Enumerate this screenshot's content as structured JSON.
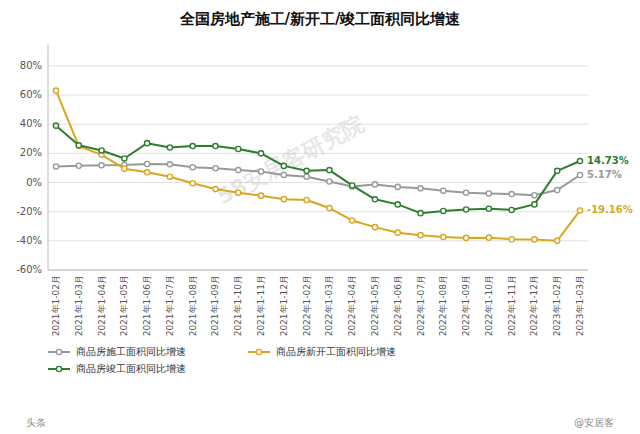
{
  "chart_data": {
    "type": "line",
    "title": "全国房地产施工/新开工/竣工面积同比增速",
    "categories": [
      "2021年1-02月",
      "2021年1-03月",
      "2021年1-04月",
      "2021年1-05月",
      "2021年1-06月",
      "2021年1-07月",
      "2021年1-08月",
      "2021年1-09月",
      "2021年1-10月",
      "2021年1-11月",
      "2021年1-12月",
      "2022年1-02月",
      "2022年1-03月",
      "2022年1-04月",
      "2022年1-05月",
      "2022年1-06月",
      "2022年1-07月",
      "2022年1-08月",
      "2022年1-09月",
      "2022年1-10月",
      "2022年1-11月",
      "2022年1-12月",
      "2023年1-02月",
      "2023年1-03月"
    ],
    "series": [
      {
        "name": "商品房施工面积同比增速",
        "color": "#999999",
        "values": [
          11.0,
          11.5,
          11.8,
          12.0,
          12.7,
          12.5,
          10.5,
          9.8,
          8.5,
          7.6,
          5.2,
          4.0,
          0.7,
          -2.7,
          -1.3,
          -3.0,
          -4.0,
          -5.6,
          -7.0,
          -7.5,
          -7.9,
          -8.7,
          -5.2,
          5.17
        ]
      },
      {
        "name": "商品房新开工面积同比增速",
        "color": "#DAA520",
        "values": [
          63.0,
          25.0,
          19.0,
          9.5,
          7.0,
          4.0,
          -0.5,
          -4.5,
          -7.0,
          -9.0,
          -11.4,
          -12.0,
          -17.5,
          -26.0,
          -30.6,
          -34.4,
          -36.1,
          -37.4,
          -38.0,
          -37.8,
          -38.9,
          -39.0,
          -40.0,
          -19.16
        ]
      },
      {
        "name": "商品房竣工面积同比增速",
        "color": "#2D7D2D",
        "values": [
          39.0,
          25.5,
          22.0,
          16.5,
          27.0,
          24.0,
          25.0,
          25.0,
          23.0,
          20.0,
          11.4,
          8.0,
          8.5,
          -2.0,
          -11.5,
          -15.0,
          -21.0,
          -19.5,
          -18.5,
          -18.0,
          -18.8,
          -15.0,
          8.0,
          14.73
        ]
      }
    ],
    "annotations": [
      "5.17%",
      "-19.16%",
      "14.73%"
    ],
    "watermark": "58安居客研究院",
    "footer": [
      "头条",
      "@安居客"
    ],
    "ylim": [
      -60,
      95
    ],
    "yticks": [
      {
        "value": -60,
        "label": "-60%"
      },
      {
        "value": -40,
        "label": "-40%"
      },
      {
        "value": -20,
        "label": "-20%"
      },
      {
        "value": 0,
        "label": "0%"
      },
      {
        "value": 20,
        "label": "20%"
      },
      {
        "value": 40,
        "label": "40%"
      },
      {
        "value": 60,
        "label": "60%"
      },
      {
        "value": 80,
        "label": "80%"
      }
    ],
    "grid": true,
    "legend": "bottom",
    "marker": "circle"
  }
}
